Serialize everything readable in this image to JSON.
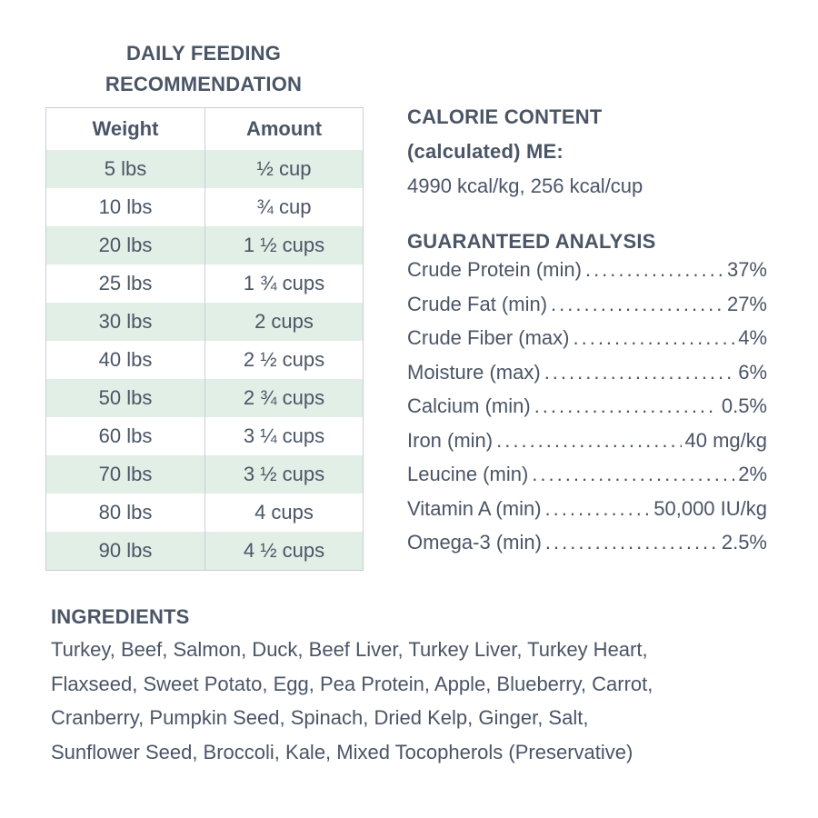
{
  "feeding": {
    "title_line1": "DAILY FEEDING",
    "title_line2": "RECOMMENDATION",
    "header_weight": "Weight",
    "header_amount": "Amount",
    "rows": [
      {
        "weight": "5 lbs",
        "amount": "½ cup"
      },
      {
        "weight": "10 lbs",
        "amount": "¾ cup"
      },
      {
        "weight": "20 lbs",
        "amount": "1 ½ cups"
      },
      {
        "weight": "25 lbs",
        "amount": "1 ¾ cups"
      },
      {
        "weight": "30 lbs",
        "amount": "2 cups"
      },
      {
        "weight": "40 lbs",
        "amount": "2 ½ cups"
      },
      {
        "weight": "50 lbs",
        "amount": "2 ¾ cups"
      },
      {
        "weight": "60 lbs",
        "amount": "3 ¼ cups"
      },
      {
        "weight": "70 lbs",
        "amount": "3 ½ cups"
      },
      {
        "weight": "80 lbs",
        "amount": "4 cups"
      },
      {
        "weight": "90 lbs",
        "amount": "4 ½ cups"
      }
    ]
  },
  "calorie": {
    "heading_line1": "CALORIE CONTENT",
    "heading_line2": "(calculated) ME:",
    "value": "4990 kcal/kg, 256 kcal/cup"
  },
  "analysis": {
    "heading": "GUARANTEED ANALYSIS",
    "rows": [
      {
        "label": "Crude Protein (min)",
        "value": "37%"
      },
      {
        "label": "Crude Fat (min)",
        "value": "27%"
      },
      {
        "label": "Crude Fiber (max)",
        "value": "4%"
      },
      {
        "label": "Moisture (max)",
        "value": "6%"
      },
      {
        "label": "Calcium (min)",
        "value": "0.5%"
      },
      {
        "label": "Iron (min)",
        "value": "40 mg/kg"
      },
      {
        "label": "Leucine (min)",
        "value": "2%"
      },
      {
        "label": "Vitamin A (min)",
        "value": "50,000 IU/kg"
      },
      {
        "label": "Omega-3 (min)",
        "value": "2.5%"
      }
    ]
  },
  "ingredients": {
    "heading": "INGREDIENTS",
    "lines": [
      "Turkey, Beef, Salmon, Duck, Beef Liver, Turkey Liver, Turkey Heart,",
      "Flaxseed, Sweet Potato, Egg, Pea Protein, Apple, Blueberry, Carrot,",
      "Cranberry, Pumpkin Seed, Spinach, Dried Kelp, Ginger, Salt,",
      "Sunflower Seed, Broccoli, Kale, Mixed Tocopherols (Preservative)"
    ]
  },
  "colors": {
    "text": "#4a5566",
    "row_shade": "#e1efe6",
    "table_border": "#c9ced6"
  }
}
